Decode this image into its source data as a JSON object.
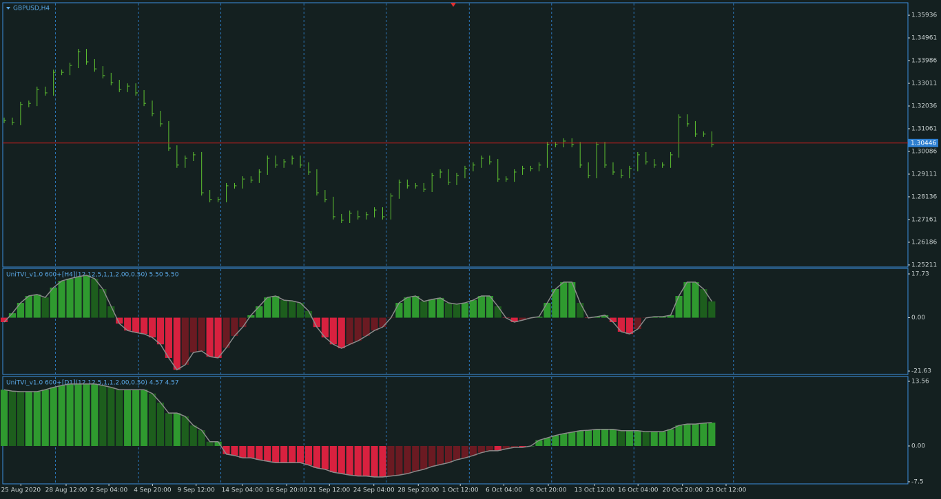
{
  "chart_data": [
    {
      "type": "ohlc",
      "title": "GBPUSD,H4",
      "color": "#5fc431",
      "price_line": 1.30446,
      "price_line_color": "#c21e1e",
      "values": [
        1.3142,
        1.3133,
        1.321,
        1.3215,
        1.3275,
        1.326,
        1.3348,
        1.3348,
        1.3378,
        1.3437,
        1.3393,
        1.3363,
        1.3334,
        1.3304,
        1.3275,
        1.3289,
        1.326,
        1.3215,
        1.3171,
        1.3127,
        1.3023,
        1.295,
        1.2979,
        1.2994,
        1.2831,
        1.2802,
        1.2802,
        1.2861,
        1.2861,
        1.289,
        1.2885,
        1.292,
        1.2979,
        1.295,
        1.2964,
        1.2979,
        1.295,
        1.292,
        1.2831,
        1.2802,
        1.2728,
        1.2713,
        1.2743,
        1.2728,
        1.2737,
        1.2757,
        1.2728,
        1.2817,
        1.2876,
        1.2861,
        1.2861,
        1.2846,
        1.2905,
        1.292,
        1.2876,
        1.2905,
        1.2935,
        1.295,
        1.2979,
        1.2964,
        1.289,
        1.289,
        1.292,
        1.2935,
        1.2935,
        1.295,
        1.3038,
        1.3038,
        1.3053,
        1.3038,
        1.295,
        1.2905,
        1.3038,
        1.295,
        1.292,
        1.2905,
        1.2935,
        1.2994,
        1.2964,
        1.295,
        1.295,
        1.2994,
        1.3156,
        1.3127,
        1.3083,
        1.3083,
        1.3038
      ],
      "xlim": [
        0,
        110
      ],
      "ylim": [
        1.2512,
        1.3647
      ],
      "yticks": [
        1.35936,
        1.34961,
        1.33986,
        1.33011,
        1.32036,
        1.31061,
        1.30086,
        1.29111,
        1.28136,
        1.27161,
        1.26186,
        1.25211
      ],
      "xgrid": [
        6.4,
        16.5,
        26.5,
        36.6,
        46.6,
        56.7,
        66.7,
        76.7,
        88.8
      ]
    },
    {
      "type": "histogram-line",
      "title": "UniTVI_v1.0 600+[H4](12,12,5,1,1,2.00,0.50) 5.50 5.50",
      "up_color": "#2f9a2f",
      "up_dim_color": "#1d5e1d",
      "down_color": "#d8213f",
      "down_dim_color": "#6b1a22",
      "line_color": "#8a8a8a",
      "values": [
        -1.8,
        1.8,
        6.0,
        8.8,
        9.4,
        8.2,
        12.2,
        14.9,
        15.8,
        16.6,
        17.2,
        15.8,
        11.6,
        4.6,
        -2.4,
        -5.2,
        -6.0,
        -6.6,
        -8.0,
        -10.8,
        -16.3,
        -21.1,
        -19.1,
        -14.1,
        -13.5,
        -15.8,
        -16.3,
        -12.2,
        -7.4,
        -3.8,
        1.0,
        4.6,
        8.2,
        8.8,
        7.1,
        6.8,
        6.0,
        2.7,
        -3.8,
        -8.0,
        -10.8,
        -12.4,
        -10.8,
        -9.4,
        -7.4,
        -5.2,
        -3.8,
        -0.1,
        6.0,
        8.2,
        8.8,
        6.6,
        7.4,
        8.0,
        6.0,
        5.5,
        6.0,
        7.1,
        8.8,
        8.8,
        4.6,
        -0.1,
        -1.8,
        -1.0,
        -0.1,
        0.4,
        6.0,
        11.6,
        14.4,
        14.4,
        6.0,
        -0.1,
        0.4,
        1.0,
        -1.8,
        -5.7,
        -6.6,
        -4.6,
        -0.1,
        0.4,
        0.4,
        1.0,
        8.8,
        14.4,
        14.4,
        11.6,
        6.6
      ],
      "xlim": [
        0,
        110
      ],
      "ylim": [
        -23.0,
        19.96
      ],
      "yticks": [
        17.73,
        {
          "value": 0,
          "label": "0.00"
        },
        -21.63
      ],
      "xgrid": [
        6.4,
        16.5,
        26.5,
        36.6,
        46.6,
        56.7,
        66.7,
        76.7,
        88.8
      ]
    },
    {
      "type": "histogram-line",
      "title": "UniTVI_v1.0 600+[D1](12,12,5,1,1,2.00,0.50) 4.57 4.57",
      "up_color": "#2f9a2f",
      "up_dim_color": "#1d5e1d",
      "down_color": "#d8213f",
      "down_dim_color": "#6b1a22",
      "line_color": "#8a8a8a",
      "values": [
        11.8,
        11.5,
        11.4,
        11.4,
        11.4,
        11.8,
        12.3,
        12.7,
        13.0,
        13.0,
        13.0,
        13.0,
        12.7,
        12.3,
        11.8,
        11.8,
        11.8,
        11.8,
        11.0,
        9.1,
        6.9,
        6.9,
        6.2,
        4.3,
        3.3,
        0.9,
        0.9,
        -1.7,
        -2.0,
        -2.5,
        -2.5,
        -2.9,
        -3.2,
        -3.5,
        -3.5,
        -3.5,
        -3.5,
        -4.0,
        -4.6,
        -4.9,
        -5.5,
        -5.8,
        -6.1,
        -6.3,
        -6.3,
        -6.5,
        -6.5,
        -6.3,
        -6.1,
        -5.8,
        -5.3,
        -4.9,
        -4.3,
        -3.9,
        -3.5,
        -2.9,
        -2.5,
        -2.0,
        -1.4,
        -1.0,
        -1.0,
        -0.6,
        -0.3,
        -0.3,
        0.0,
        1.2,
        1.7,
        2.2,
        2.6,
        2.9,
        3.2,
        3.3,
        3.5,
        3.5,
        3.5,
        3.2,
        3.2,
        3.2,
        3.0,
        3.0,
        3.0,
        3.5,
        4.3,
        4.6,
        4.6,
        4.8,
        4.9
      ],
      "xlim": [
        0,
        110
      ],
      "ylim": [
        -7.94,
        14.57
      ],
      "yticks": [
        13.56,
        {
          "value": 0,
          "label": "0.00"
        },
        -7.5
      ],
      "xgrid": [
        6.4,
        16.5,
        26.5,
        36.6,
        46.6,
        56.7,
        66.7,
        76.7,
        88.8
      ],
      "xticks": [
        {
          "value": 2.2,
          "label": "25 Aug 2020"
        },
        {
          "value": 7.7,
          "label": "28 Aug 12:00"
        },
        {
          "value": 12.9,
          "label": "2 Sep 04:00"
        },
        {
          "value": 18.2,
          "label": "4 Sep 20:00"
        },
        {
          "value": 23.5,
          "label": "9 Sep 12:00"
        },
        {
          "value": 29.1,
          "label": "14 Sep 04:00"
        },
        {
          "value": 34.5,
          "label": "16 Sep 20:00"
        },
        {
          "value": 39.7,
          "label": "21 Sep 12:00"
        },
        {
          "value": 45.1,
          "label": "24 Sep 04:00"
        },
        {
          "value": 50.5,
          "label": "28 Sep 20:00"
        },
        {
          "value": 55.6,
          "label": "1 Oct 12:00"
        },
        {
          "value": 60.9,
          "label": "6 Oct 04:00"
        },
        {
          "value": 66.3,
          "label": "8 Oct 20:00"
        },
        {
          "value": 71.9,
          "label": "13 Oct 12:00"
        },
        {
          "value": 77.2,
          "label": "16 Oct 04:00"
        },
        {
          "value": 82.6,
          "label": "20 Oct 20:00"
        },
        {
          "value": 87.9,
          "label": "23 Oct 12:00"
        }
      ]
    }
  ]
}
